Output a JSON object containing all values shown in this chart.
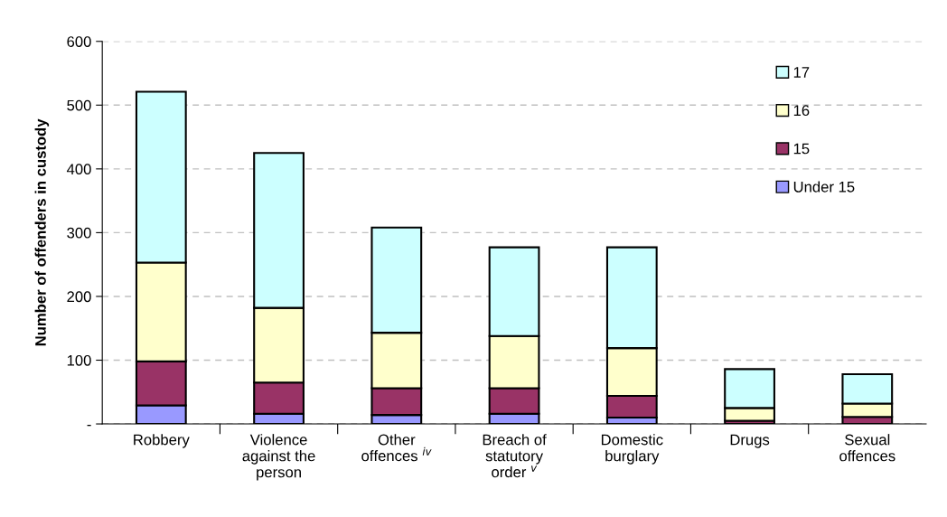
{
  "chart_data": {
    "type": "bar",
    "stacked": true,
    "ylabel": "Number of offenders in custody",
    "categories": [
      "Robbery",
      "Violence\nagainst the\nperson",
      "Other\noffences $^{iv}$",
      "Breach of\nstatutory\norder $^{v}$",
      "Domestic\nburglary",
      "Drugs",
      "Sexual\noffences"
    ],
    "series": [
      {
        "name": "Under 15",
        "color": "#9999ff",
        "values": [
          29,
          16,
          14,
          16,
          10,
          null,
          null
        ]
      },
      {
        "name": "15",
        "color": "#993366",
        "values": [
          69,
          49,
          42,
          40,
          34,
          5,
          11
        ]
      },
      {
        "name": "16",
        "color": "#ffffcc",
        "values": [
          155,
          117,
          87,
          82,
          75,
          20,
          21
        ]
      },
      {
        "name": "17",
        "color": "#ccffff",
        "values": [
          268,
          243,
          165,
          139,
          158,
          61,
          46
        ]
      }
    ],
    "ylim": [
      0,
      600
    ],
    "yticks": [
      {
        "value": 0,
        "label": "-"
      },
      100,
      200,
      300,
      400,
      500,
      600
    ],
    "grid": "y",
    "legend": "top right"
  }
}
